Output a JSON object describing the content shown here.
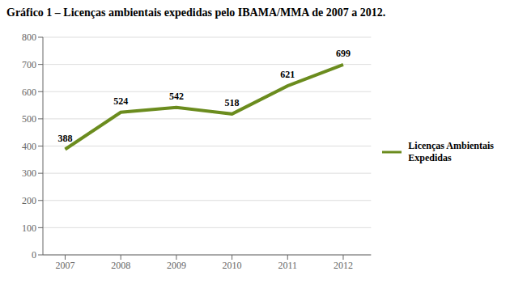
{
  "chart_data": {
    "type": "line",
    "title": "Gráfico 1 – Licenças ambientais expedidas pelo IBAMA/MMA de 2007 a 2012.",
    "x": [
      2007,
      2008,
      2009,
      2010,
      2011,
      2012
    ],
    "series": [
      {
        "name": "Licenças Ambientais\nExpedidas",
        "color": "#6b8c1e",
        "values": [
          388,
          524,
          542,
          518,
          621,
          699
        ]
      }
    ],
    "xlim": [
      2006.6,
      2012.5
    ],
    "xticks": [
      2007,
      2008,
      2009,
      2010,
      2011,
      2012
    ],
    "ylim": [
      0,
      800
    ],
    "yticks": [
      0,
      100,
      200,
      300,
      400,
      500,
      600,
      700,
      800
    ],
    "grid": true,
    "legend": "right",
    "data_labels": true
  }
}
